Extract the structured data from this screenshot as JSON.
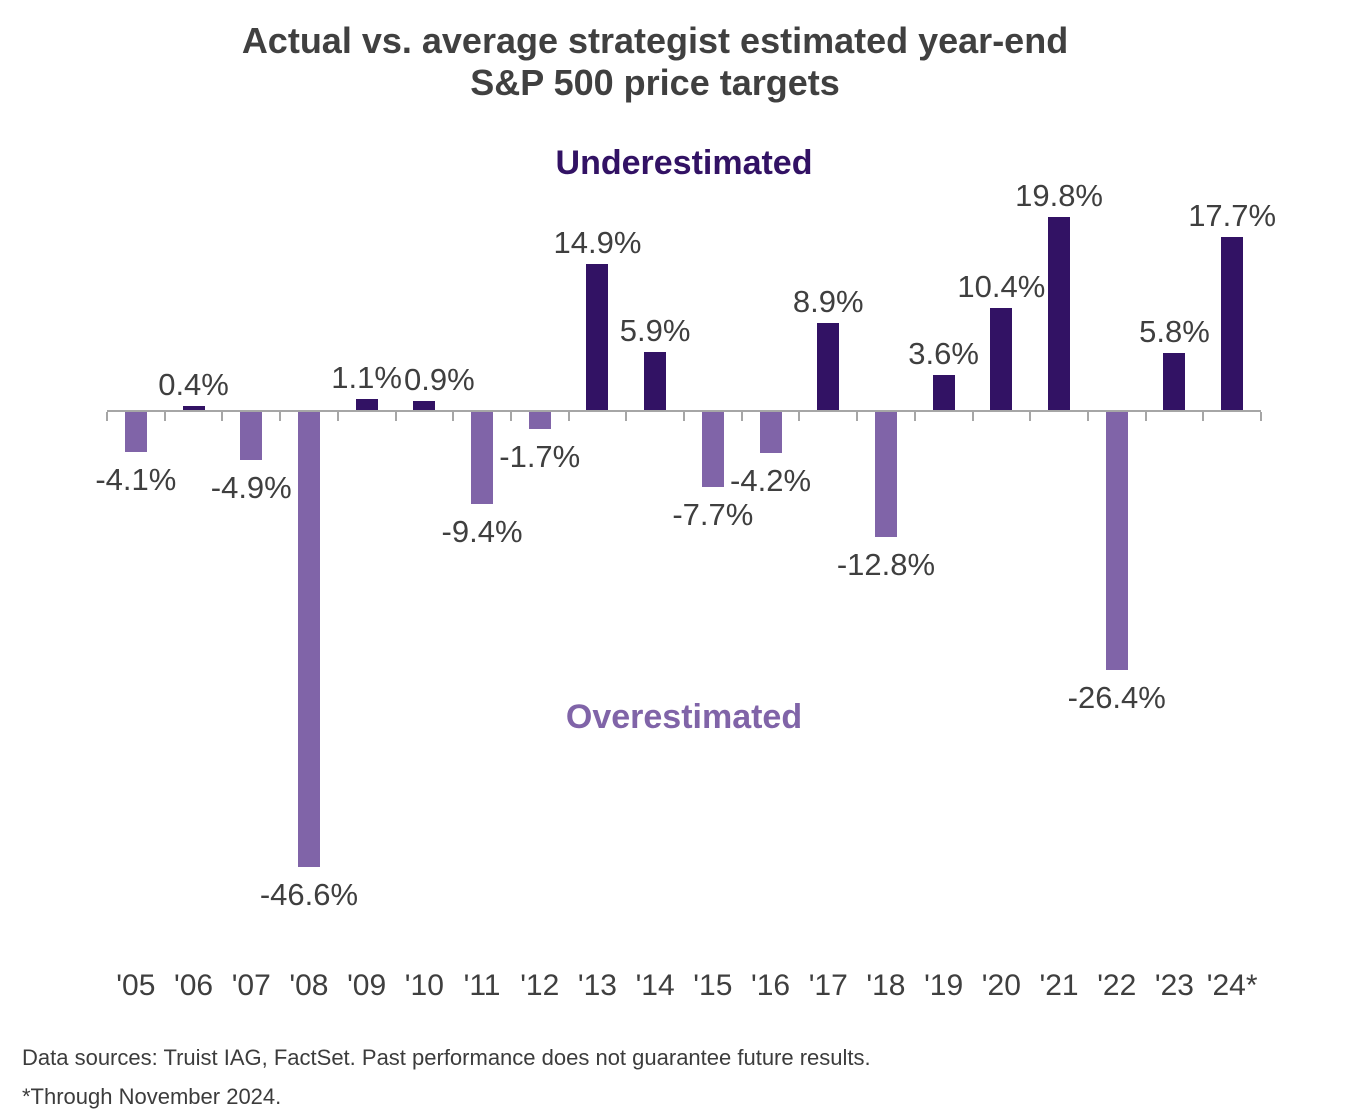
{
  "title": {
    "line1": "Actual vs. average strategist estimated year-end",
    "line2": "S&P 500 price targets"
  },
  "annotations": {
    "underestimated": "Underestimated",
    "overestimated": "Overestimated"
  },
  "footer": {
    "line1": "Data sources: Truist IAG, FactSet. Past performance does not guarantee future results.",
    "line2": "*Through November 2024."
  },
  "colors": {
    "positive_bar": "#321264",
    "negative_bar": "#8064A8",
    "underestimated_text": "#321264",
    "overestimated_text": "#8064A8",
    "axis": "#A6A6A6",
    "label_text": "#3F3F3F",
    "title_text": "#404040"
  },
  "chart_data": {
    "type": "bar",
    "title": "Actual vs. average strategist estimated year-end S&P 500 price targets",
    "xlabel": "",
    "ylabel": "",
    "grid": false,
    "legend": "none",
    "ylim": [
      -50,
      25
    ],
    "positive_meaning": "Underestimated (dark purple bars)",
    "negative_meaning": "Overestimated (light purple bars)",
    "categories": [
      "'05",
      "'06",
      "'07",
      "'08",
      "'09",
      "'10",
      "'11",
      "'12",
      "'13",
      "'14",
      "'15",
      "'16",
      "'17",
      "'18",
      "'19",
      "'20",
      "'21",
      "'22",
      "'23",
      "'24*"
    ],
    "values": [
      -4.1,
      0.4,
      -4.9,
      -46.6,
      1.1,
      0.9,
      -9.4,
      -1.7,
      14.9,
      5.9,
      -7.7,
      -4.2,
      8.9,
      -12.8,
      3.6,
      10.4,
      19.8,
      -26.4,
      5.8,
      17.7
    ],
    "labels": [
      "-4.1%",
      "0.4%",
      "-4.9%",
      "-46.6%",
      "1.1%",
      "0.9%",
      "-9.4%",
      "-1.7%",
      "14.9%",
      "5.9%",
      "-7.7%",
      "-4.2%",
      "8.9%",
      "-12.8%",
      "3.6%",
      "10.4%",
      "19.8%",
      "-26.4%",
      "5.8%",
      "17.7%"
    ]
  }
}
